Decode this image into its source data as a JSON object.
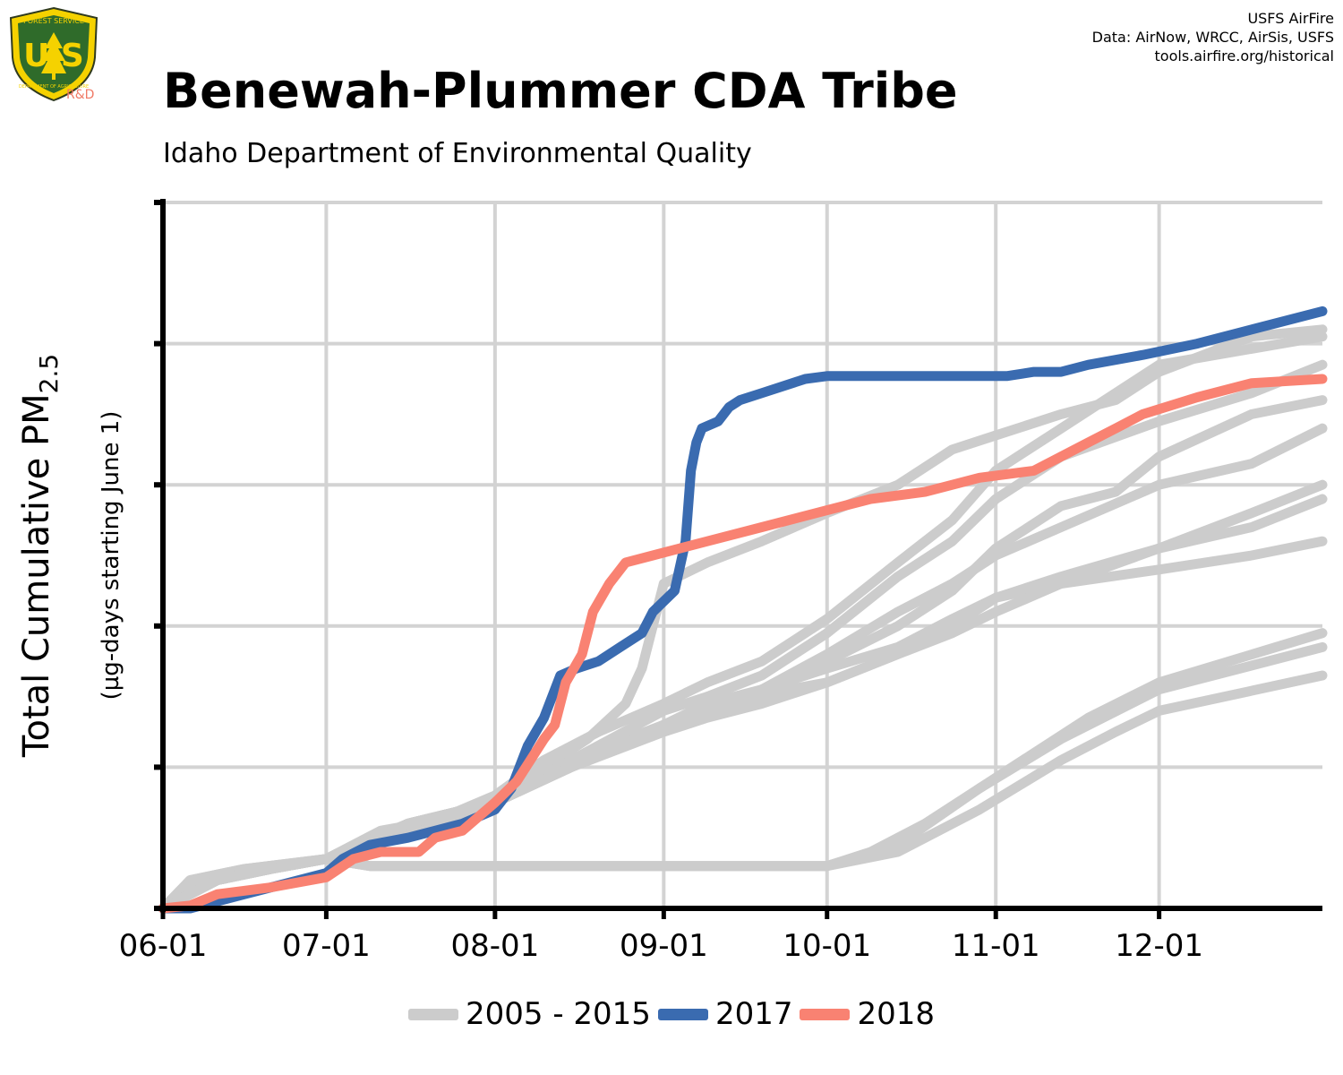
{
  "title": "Benewah-Plummer CDA Tribe",
  "subtitle": "Idaho Department of Environmental Quality",
  "credits": [
    "USFS AirFire",
    "Data: AirNow, WRCC, AirSis, USFS",
    "tools.airfire.org/historical"
  ],
  "logo": {
    "top_text": "FOREST SERVICE",
    "letters": "U S",
    "bottom_text": "DEPARTMENT OF AGRICULTURE",
    "tag": "R&D"
  },
  "chart_data": {
    "type": "line",
    "title": "Benewah-Plummer CDA Tribe",
    "subtitle": "Idaho Department of Environmental Quality",
    "xlabel": "",
    "ylabel": "Total Cumulative PM",
    "ylabel_subscript": "2.5",
    "ylabel_sub": "(µg-days starting June 1)",
    "x_ticks": [
      "06-01",
      "07-01",
      "08-01",
      "09-01",
      "10-01",
      "11-01",
      "12-01"
    ],
    "x_tick_days": [
      0,
      30,
      61,
      92,
      122,
      153,
      183
    ],
    "xlim": [
      0,
      213
    ],
    "ylim": [
      0,
      5
    ],
    "y_ticks": [
      0,
      1,
      2,
      3,
      4,
      5
    ],
    "y_tick_labels_shown": false,
    "grid": true,
    "legend_position": "bottom",
    "legend": [
      {
        "label": "2005 - 2015",
        "color": "#cccccc"
      },
      {
        "label": "2017",
        "color": "#3a6bb0"
      },
      {
        "label": "2018",
        "color": "#f98272"
      }
    ],
    "series": [
      {
        "name": "2005 - 2015",
        "color": "#cccccc",
        "points": [
          [
            0,
            0
          ],
          [
            5,
            0.2
          ],
          [
            15,
            0.27
          ],
          [
            30,
            0.35
          ],
          [
            40,
            0.55
          ],
          [
            50,
            0.62
          ],
          [
            61,
            0.8
          ],
          [
            70,
            1.05
          ],
          [
            80,
            1.25
          ],
          [
            92,
            1.45
          ],
          [
            100,
            1.6
          ],
          [
            110,
            1.75
          ],
          [
            122,
            2.05
          ],
          [
            135,
            2.45
          ],
          [
            145,
            2.75
          ],
          [
            153,
            3.1
          ],
          [
            165,
            3.4
          ],
          [
            183,
            3.85
          ],
          [
            213,
            4.05
          ]
        ]
      },
      {
        "name": "2005 - 2015",
        "color": "#cccccc",
        "points": [
          [
            0,
            0
          ],
          [
            5,
            0.15
          ],
          [
            15,
            0.25
          ],
          [
            30,
            0.35
          ],
          [
            38,
            0.5
          ],
          [
            50,
            0.6
          ],
          [
            61,
            0.75
          ],
          [
            70,
            1.0
          ],
          [
            78,
            1.2
          ],
          [
            85,
            1.45
          ],
          [
            88,
            1.7
          ],
          [
            92,
            2.3
          ],
          [
            100,
            2.45
          ],
          [
            110,
            2.6
          ],
          [
            122,
            2.8
          ],
          [
            135,
            3.0
          ],
          [
            145,
            3.25
          ],
          [
            153,
            3.35
          ],
          [
            165,
            3.5
          ],
          [
            175,
            3.6
          ],
          [
            183,
            3.8
          ],
          [
            200,
            4.05
          ],
          [
            213,
            4.1
          ]
        ]
      },
      {
        "name": "2005 - 2015",
        "color": "#cccccc",
        "points": [
          [
            0,
            0
          ],
          [
            5,
            0.2
          ],
          [
            15,
            0.28
          ],
          [
            30,
            0.35
          ],
          [
            38,
            0.3
          ],
          [
            50,
            0.3
          ],
          [
            70,
            0.3
          ],
          [
            100,
            0.3
          ],
          [
            122,
            0.3
          ],
          [
            135,
            0.45
          ],
          [
            150,
            0.85
          ],
          [
            165,
            1.2
          ],
          [
            183,
            1.55
          ],
          [
            213,
            1.85
          ]
        ]
      },
      {
        "name": "2005 - 2015",
        "color": "#cccccc",
        "points": [
          [
            0,
            0
          ],
          [
            5,
            0.2
          ],
          [
            15,
            0.28
          ],
          [
            30,
            0.35
          ],
          [
            38,
            0.3
          ],
          [
            70,
            0.3
          ],
          [
            100,
            0.3
          ],
          [
            122,
            0.3
          ],
          [
            135,
            0.4
          ],
          [
            150,
            0.7
          ],
          [
            165,
            1.05
          ],
          [
            175,
            1.25
          ],
          [
            183,
            1.4
          ],
          [
            213,
            1.65
          ]
        ]
      },
      {
        "name": "2005 - 2015",
        "color": "#cccccc",
        "points": [
          [
            0,
            0
          ],
          [
            5,
            0.15
          ],
          [
            15,
            0.25
          ],
          [
            30,
            0.35
          ],
          [
            38,
            0.3
          ],
          [
            70,
            0.3
          ],
          [
            100,
            0.3
          ],
          [
            122,
            0.3
          ],
          [
            130,
            0.4
          ],
          [
            140,
            0.6
          ],
          [
            150,
            0.85
          ],
          [
            160,
            1.1
          ],
          [
            170,
            1.35
          ],
          [
            183,
            1.6
          ],
          [
            213,
            1.95
          ]
        ]
      },
      {
        "name": "2005 - 2015",
        "color": "#cccccc",
        "points": [
          [
            0,
            0
          ],
          [
            10,
            0.2
          ],
          [
            20,
            0.28
          ],
          [
            30,
            0.35
          ],
          [
            45,
            0.6
          ],
          [
            61,
            0.75
          ],
          [
            75,
            1.05
          ],
          [
            92,
            1.4
          ],
          [
            100,
            1.5
          ],
          [
            110,
            1.65
          ],
          [
            122,
            1.95
          ],
          [
            135,
            2.35
          ],
          [
            145,
            2.6
          ],
          [
            153,
            2.9
          ],
          [
            165,
            3.2
          ],
          [
            183,
            3.45
          ],
          [
            200,
            3.65
          ],
          [
            213,
            3.85
          ]
        ]
      },
      {
        "name": "2005 - 2015",
        "color": "#cccccc",
        "points": [
          [
            0,
            0
          ],
          [
            10,
            0.2
          ],
          [
            20,
            0.28
          ],
          [
            30,
            0.35
          ],
          [
            45,
            0.6
          ],
          [
            61,
            0.75
          ],
          [
            75,
            1.05
          ],
          [
            92,
            1.3
          ],
          [
            100,
            1.4
          ],
          [
            110,
            1.55
          ],
          [
            122,
            1.8
          ],
          [
            135,
            2.1
          ],
          [
            145,
            2.3
          ],
          [
            153,
            2.5
          ],
          [
            165,
            2.7
          ],
          [
            183,
            3.0
          ],
          [
            200,
            3.15
          ],
          [
            213,
            3.4
          ]
        ]
      },
      {
        "name": "2005 - 2015",
        "color": "#cccccc",
        "points": [
          [
            0,
            0
          ],
          [
            10,
            0.2
          ],
          [
            20,
            0.28
          ],
          [
            30,
            0.35
          ],
          [
            45,
            0.6
          ],
          [
            61,
            0.75
          ],
          [
            75,
            1.0
          ],
          [
            92,
            1.3
          ],
          [
            100,
            1.4
          ],
          [
            115,
            1.55
          ],
          [
            122,
            1.6
          ],
          [
            135,
            1.8
          ],
          [
            145,
            2.0
          ],
          [
            153,
            2.2
          ],
          [
            165,
            2.3
          ],
          [
            183,
            2.55
          ],
          [
            200,
            2.8
          ],
          [
            213,
            3.0
          ]
        ]
      },
      {
        "name": "2005 - 2015",
        "color": "#cccccc",
        "points": [
          [
            0,
            0
          ],
          [
            10,
            0.2
          ],
          [
            20,
            0.28
          ],
          [
            30,
            0.35
          ],
          [
            45,
            0.6
          ],
          [
            61,
            0.75
          ],
          [
            75,
            1.0
          ],
          [
            92,
            1.25
          ],
          [
            100,
            1.35
          ],
          [
            110,
            1.45
          ],
          [
            122,
            1.6
          ],
          [
            135,
            1.8
          ],
          [
            145,
            1.95
          ],
          [
            153,
            2.1
          ],
          [
            165,
            2.3
          ],
          [
            183,
            2.4
          ],
          [
            200,
            2.5
          ],
          [
            213,
            2.6
          ]
        ]
      },
      {
        "name": "2005 - 2015",
        "color": "#cccccc",
        "points": [
          [
            0,
            0
          ],
          [
            10,
            0.2
          ],
          [
            20,
            0.28
          ],
          [
            30,
            0.35
          ],
          [
            45,
            0.6
          ],
          [
            61,
            0.75
          ],
          [
            75,
            1.0
          ],
          [
            92,
            1.3
          ],
          [
            100,
            1.45
          ],
          [
            110,
            1.55
          ],
          [
            122,
            1.7
          ],
          [
            135,
            1.85
          ],
          [
            145,
            2.05
          ],
          [
            153,
            2.2
          ],
          [
            165,
            2.35
          ],
          [
            183,
            2.55
          ],
          [
            200,
            2.7
          ],
          [
            213,
            2.9
          ]
        ]
      },
      {
        "name": "2005 - 2015",
        "color": "#cccccc",
        "points": [
          [
            0,
            0
          ],
          [
            10,
            0.2
          ],
          [
            20,
            0.28
          ],
          [
            30,
            0.35
          ],
          [
            45,
            0.6
          ],
          [
            61,
            0.75
          ],
          [
            75,
            1.0
          ],
          [
            90,
            1.25
          ],
          [
            100,
            1.4
          ],
          [
            110,
            1.55
          ],
          [
            122,
            1.75
          ],
          [
            135,
            2.0
          ],
          [
            145,
            2.25
          ],
          [
            153,
            2.55
          ],
          [
            165,
            2.85
          ],
          [
            175,
            2.95
          ],
          [
            183,
            3.2
          ],
          [
            200,
            3.5
          ],
          [
            213,
            3.6
          ]
        ]
      },
      {
        "name": "2017",
        "color": "#3a6bb0",
        "points": [
          [
            0,
            0
          ],
          [
            5,
            0
          ],
          [
            15,
            0.1
          ],
          [
            25,
            0.2
          ],
          [
            30,
            0.25
          ],
          [
            33,
            0.35
          ],
          [
            38,
            0.45
          ],
          [
            45,
            0.5
          ],
          [
            50,
            0.55
          ],
          [
            55,
            0.6
          ],
          [
            61,
            0.7
          ],
          [
            64,
            0.85
          ],
          [
            67,
            1.15
          ],
          [
            70,
            1.35
          ],
          [
            73,
            1.65
          ],
          [
            76,
            1.7
          ],
          [
            80,
            1.75
          ],
          [
            84,
            1.85
          ],
          [
            88,
            1.95
          ],
          [
            90,
            2.1
          ],
          [
            94,
            2.25
          ],
          [
            96,
            2.6
          ],
          [
            97,
            3.1
          ],
          [
            98,
            3.3
          ],
          [
            99,
            3.4
          ],
          [
            102,
            3.45
          ],
          [
            104,
            3.55
          ],
          [
            106,
            3.6
          ],
          [
            110,
            3.65
          ],
          [
            118,
            3.75
          ],
          [
            122,
            3.77
          ],
          [
            130,
            3.77
          ],
          [
            140,
            3.77
          ],
          [
            150,
            3.77
          ],
          [
            155,
            3.77
          ],
          [
            160,
            3.8
          ],
          [
            165,
            3.8
          ],
          [
            170,
            3.85
          ],
          [
            180,
            3.92
          ],
          [
            190,
            4.0
          ],
          [
            200,
            4.1
          ],
          [
            213,
            4.23
          ]
        ]
      },
      {
        "name": "2018",
        "color": "#f98272",
        "points": [
          [
            0,
            0
          ],
          [
            5,
            0.02
          ],
          [
            10,
            0.1
          ],
          [
            20,
            0.15
          ],
          [
            30,
            0.22
          ],
          [
            35,
            0.35
          ],
          [
            40,
            0.4
          ],
          [
            45,
            0.4
          ],
          [
            47,
            0.4
          ],
          [
            50,
            0.5
          ],
          [
            55,
            0.55
          ],
          [
            61,
            0.75
          ],
          [
            65,
            0.9
          ],
          [
            70,
            1.2
          ],
          [
            72,
            1.3
          ],
          [
            74,
            1.6
          ],
          [
            77,
            1.8
          ],
          [
            79,
            2.1
          ],
          [
            82,
            2.3
          ],
          [
            85,
            2.45
          ],
          [
            90,
            2.5
          ],
          [
            95,
            2.55
          ],
          [
            100,
            2.6
          ],
          [
            110,
            2.7
          ],
          [
            120,
            2.8
          ],
          [
            130,
            2.9
          ],
          [
            140,
            2.95
          ],
          [
            150,
            3.05
          ],
          [
            160,
            3.1
          ],
          [
            170,
            3.3
          ],
          [
            175,
            3.4
          ],
          [
            180,
            3.5
          ],
          [
            190,
            3.62
          ],
          [
            200,
            3.72
          ],
          [
            213,
            3.75
          ]
        ]
      }
    ]
  }
}
